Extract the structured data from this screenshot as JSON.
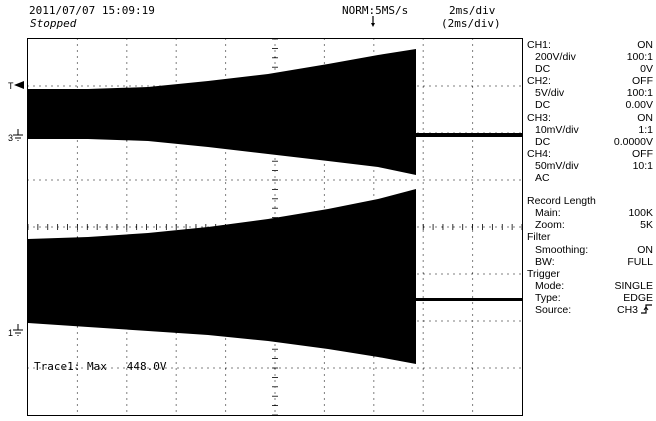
{
  "header": {
    "date": "2011/07/07  15:09:19",
    "status": "Stopped",
    "mode": "NORM:5MS/s",
    "time_div": "2ms/div",
    "time_div_paren": "(2ms/div)"
  },
  "channels": [
    {
      "name": "CH1:",
      "state": "ON",
      "vdiv": "200V/div",
      "probe": "100:1",
      "coupling": "DC",
      "offset": "0V"
    },
    {
      "name": "CH2:",
      "state": "OFF",
      "vdiv": "5V/div",
      "probe": "100:1",
      "coupling": "DC",
      "offset": "0.00V"
    },
    {
      "name": "CH3:",
      "state": "ON",
      "vdiv": "10mV/div",
      "probe": "1:1",
      "coupling": "DC",
      "offset": "0.0000V"
    },
    {
      "name": "CH4:",
      "state": "OFF",
      "vdiv": "50mV/div",
      "probe": "10:1",
      "coupling": "AC",
      "offset": ""
    }
  ],
  "record": {
    "title": "Record Length",
    "main_label": "Main:",
    "main_value": "100K",
    "zoom_label": "Zoom:",
    "zoom_value": "5K"
  },
  "filter": {
    "title": "Filter",
    "smoothing_label": "Smoothing:",
    "smoothing_value": "ON",
    "bw_label": "BW:",
    "bw_value": "FULL"
  },
  "trigger": {
    "title": "Trigger",
    "mode_label": "Mode:",
    "mode_value": "SINGLE",
    "type_label": "Type:",
    "type_value": "EDGE",
    "source_label": "Source:",
    "source_value": "CH3"
  },
  "readout": {
    "label": "Trace1: Max",
    "value": "448.0V"
  },
  "markers": {
    "trig_level": "T",
    "ch3": "3",
    "ch1": "1"
  },
  "colors": {
    "trace": "#000000",
    "grid": "#000000",
    "background": "#ffffff"
  }
}
